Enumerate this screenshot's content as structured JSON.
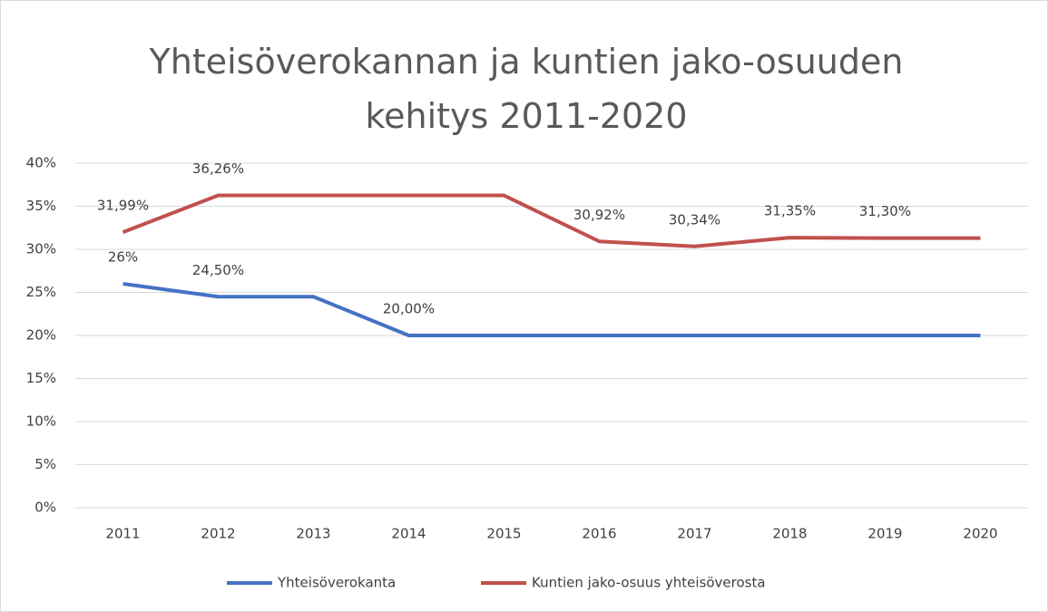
{
  "chart_data": {
    "type": "line",
    "title": "Yhteisöverokannan ja kuntien jako-osuuden kehitys 2011-2020",
    "categories": [
      "2011",
      "2012",
      "2013",
      "2014",
      "2015",
      "2016",
      "2017",
      "2018",
      "2019",
      "2020"
    ],
    "series": [
      {
        "name": "Yhteisöverokanta",
        "color": "#4472c4",
        "values": [
          26,
          24.5,
          24.5,
          20,
          20,
          20,
          20,
          20,
          20,
          20
        ],
        "value_labels": [
          "26%",
          "24,50%",
          null,
          "20,00%",
          null,
          null,
          null,
          null,
          null,
          null
        ]
      },
      {
        "name": "Kuntien jako-osuus yhteisöverosta",
        "color": "#c0504d",
        "values": [
          31.99,
          36.26,
          36.26,
          36.26,
          36.26,
          30.92,
          30.34,
          31.35,
          31.3,
          31.3
        ],
        "value_labels": [
          "31,99%",
          "36,26%",
          null,
          null,
          null,
          "30,92%",
          "30,34%",
          "31,35%",
          "31,30%",
          null
        ]
      }
    ],
    "ylim": [
      0,
      40
    ],
    "yticks": [
      {
        "value": 0,
        "label": "0%"
      },
      {
        "value": 5,
        "label": "5%"
      },
      {
        "value": 10,
        "label": "10%"
      },
      {
        "value": 15,
        "label": "15%"
      },
      {
        "value": 20,
        "label": "20%"
      },
      {
        "value": 25,
        "label": "25%"
      },
      {
        "value": 30,
        "label": "30%"
      },
      {
        "value": 35,
        "label": "35%"
      },
      {
        "value": 40,
        "label": "40%"
      }
    ],
    "grid": true
  }
}
